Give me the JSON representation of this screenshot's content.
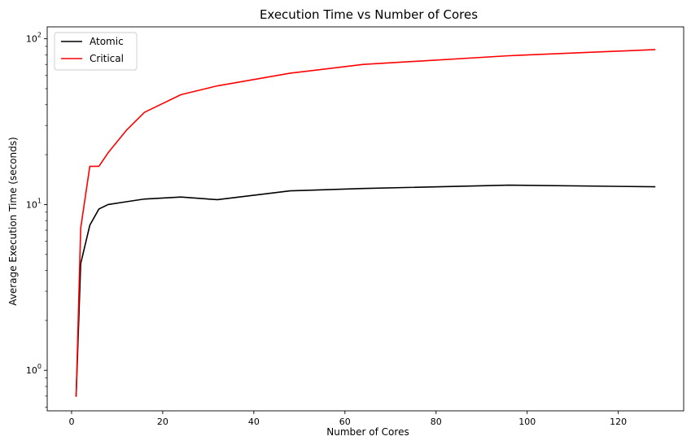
{
  "chart_data": {
    "type": "line",
    "title": "Execution Time vs Number of Cores",
    "xlabel": "Number of Cores",
    "ylabel": "Average Execution Time (seconds)",
    "x_scale": "linear",
    "y_scale": "log",
    "xlim": [
      -5.35,
      134.35
    ],
    "ylim": [
      0.57,
      118
    ],
    "x_ticks": [
      0,
      20,
      40,
      60,
      80,
      100,
      120
    ],
    "x_tick_labels": [
      "0",
      "20",
      "40",
      "60",
      "80",
      "100",
      "120"
    ],
    "y_major_ticks": [
      1,
      10,
      100
    ],
    "y_tick_labels": [
      {
        "base": "10",
        "exp": "0"
      },
      {
        "base": "10",
        "exp": "1"
      },
      {
        "base": "10",
        "exp": "2"
      }
    ],
    "legend_location": "upper left",
    "grid": false,
    "x": [
      1,
      2,
      4,
      6,
      8,
      12,
      16,
      24,
      32,
      48,
      64,
      96,
      128
    ],
    "series": [
      {
        "name": "Atomic",
        "color": "#000000",
        "values": [
          0.7,
          4.4,
          7.5,
          9.4,
          10.0,
          10.4,
          10.8,
          11.1,
          10.7,
          12.1,
          12.5,
          13.1,
          12.8
        ]
      },
      {
        "name": "Critical",
        "color": "#ff0000",
        "values": [
          0.7,
          7.2,
          17.0,
          17.0,
          20.5,
          28.0,
          36.0,
          46.0,
          52.0,
          62.0,
          70.0,
          79.0,
          86.0
        ]
      }
    ]
  }
}
